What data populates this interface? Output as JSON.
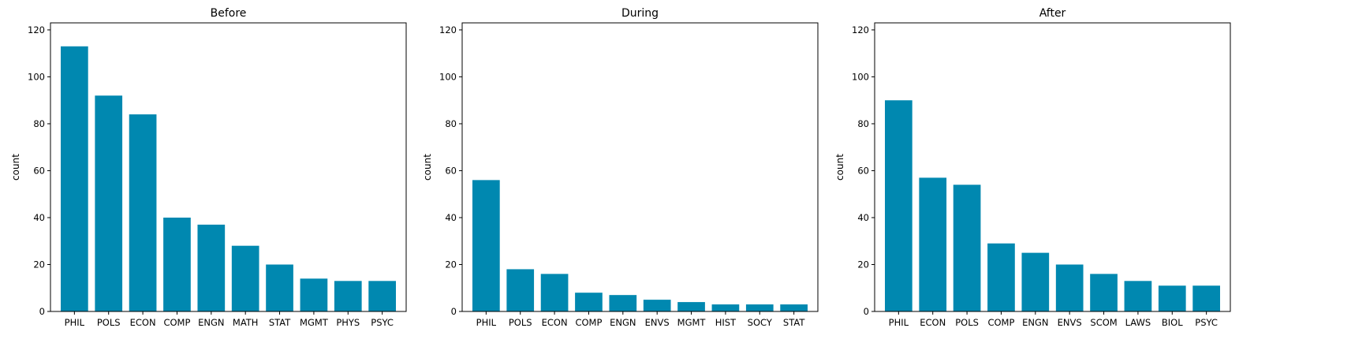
{
  "chart_data": [
    {
      "type": "bar",
      "title": "Before",
      "xlabel": "",
      "ylabel": "count",
      "ylim": [
        0,
        123
      ],
      "yticks": [
        0,
        20,
        40,
        60,
        80,
        100,
        120
      ],
      "categories": [
        "PHIL",
        "POLS",
        "ECON",
        "COMP",
        "ENGN",
        "MATH",
        "STAT",
        "MGMT",
        "PHYS",
        "PSYC"
      ],
      "values": [
        113,
        92,
        84,
        40,
        37,
        28,
        20,
        14,
        13,
        13
      ],
      "bar_color": "#0088b0",
      "grid": false
    },
    {
      "type": "bar",
      "title": "During",
      "xlabel": "",
      "ylabel": "count",
      "ylim": [
        0,
        123
      ],
      "yticks": [
        0,
        20,
        40,
        60,
        80,
        100,
        120
      ],
      "categories": [
        "PHIL",
        "POLS",
        "ECON",
        "COMP",
        "ENGN",
        "ENVS",
        "MGMT",
        "HIST",
        "SOCY",
        "STAT"
      ],
      "values": [
        56,
        18,
        16,
        8,
        7,
        5,
        4,
        3,
        3,
        3
      ],
      "bar_color": "#0088b0",
      "grid": false
    },
    {
      "type": "bar",
      "title": "After",
      "xlabel": "",
      "ylabel": "count",
      "ylim": [
        0,
        123
      ],
      "yticks": [
        0,
        20,
        40,
        60,
        80,
        100,
        120
      ],
      "categories": [
        "PHIL",
        "ECON",
        "POLS",
        "COMP",
        "ENGN",
        "ENVS",
        "SCOM",
        "LAWS",
        "BIOL",
        "PSYC"
      ],
      "values": [
        90,
        57,
        54,
        29,
        25,
        20,
        16,
        13,
        11,
        11
      ],
      "bar_color": "#0088b0",
      "grid": false
    }
  ]
}
